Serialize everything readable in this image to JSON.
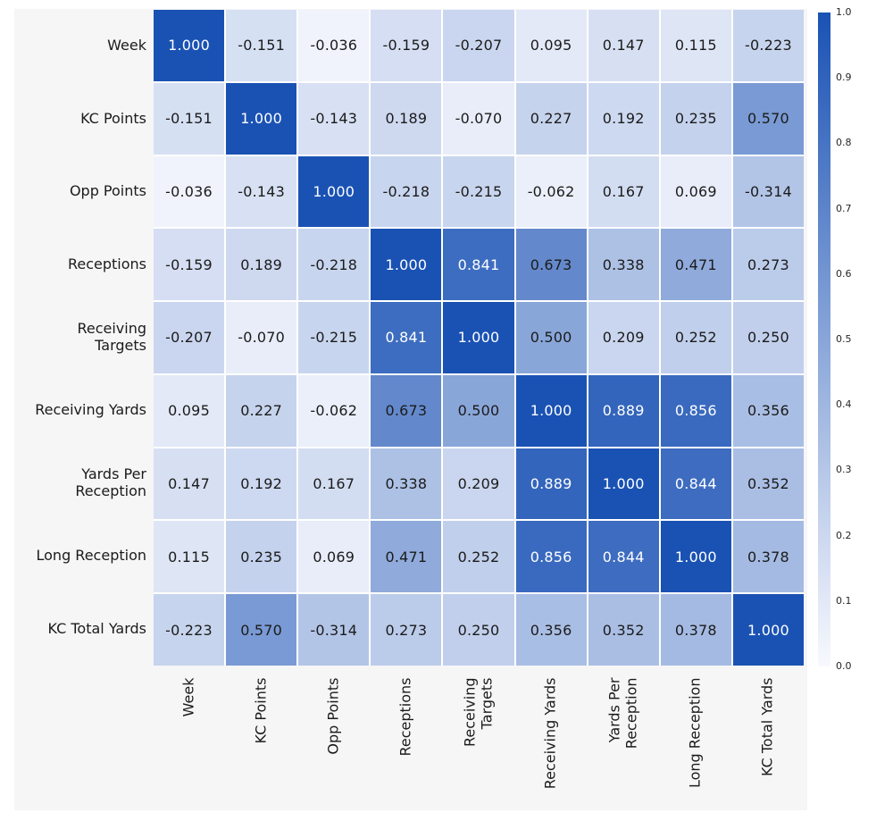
{
  "chart_data": {
    "type": "heatmap",
    "title": "",
    "xlabel": "",
    "ylabel": "",
    "categories": [
      "Week",
      "KC Points",
      "Opp Points",
      "Receptions",
      "Receiving\nTargets",
      "Receiving Yards",
      "Yards Per\nReception",
      "Long Reception",
      "KC Total Yards"
    ],
    "matrix": [
      [
        1.0,
        -0.151,
        -0.036,
        -0.159,
        -0.207,
        0.095,
        0.147,
        0.115,
        -0.223
      ],
      [
        -0.151,
        1.0,
        -0.143,
        0.189,
        -0.07,
        0.227,
        0.192,
        0.235,
        0.57
      ],
      [
        -0.036,
        -0.143,
        1.0,
        -0.218,
        -0.215,
        -0.062,
        0.167,
        0.069,
        -0.314
      ],
      [
        -0.159,
        0.189,
        -0.218,
        1.0,
        0.841,
        0.673,
        0.338,
        0.471,
        0.273
      ],
      [
        -0.207,
        -0.07,
        -0.215,
        0.841,
        1.0,
        0.5,
        0.209,
        0.252,
        0.25
      ],
      [
        0.095,
        0.227,
        -0.062,
        0.673,
        0.5,
        1.0,
        0.889,
        0.856,
        0.356
      ],
      [
        0.147,
        0.192,
        0.167,
        0.338,
        0.209,
        0.889,
        1.0,
        0.844,
        0.352
      ],
      [
        0.115,
        0.235,
        0.069,
        0.471,
        0.252,
        0.856,
        0.844,
        1.0,
        0.378
      ],
      [
        -0.223,
        0.57,
        -0.314,
        0.273,
        0.25,
        0.356,
        0.352,
        0.378,
        1.0
      ]
    ],
    "annotation_decimals": 3,
    "color_mapping": "absolute-value",
    "grid": false,
    "legend_position": "right",
    "colorbar": {
      "min": 0.0,
      "max": 1.0,
      "ticks": [
        "1.0",
        "0.9",
        "0.8",
        "0.7",
        "0.6",
        "0.5",
        "0.4",
        "0.3",
        "0.2",
        "0.1",
        "0.0"
      ]
    }
  },
  "colors": {
    "cell_high": "#1a52b4",
    "cell_low": "#f8f9fe",
    "figure_bg": "#f6f6f7",
    "canvas_bg": "#ffffff",
    "annot_dark": "#1b1b1b",
    "annot_light": "#ffffff",
    "tick_color": "#262626"
  }
}
